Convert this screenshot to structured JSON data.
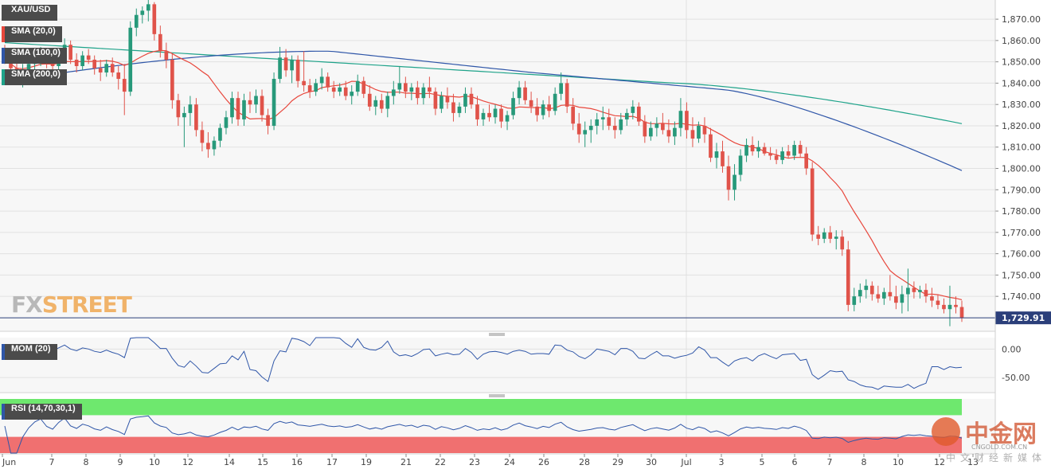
{
  "symbol": "XAU/USD",
  "indicators": [
    {
      "label": "SMA (20,0)",
      "color": "#e8473c"
    },
    {
      "label": "SMA (100,0)",
      "color": "#2f56a8"
    },
    {
      "label": "SMA (200,0)",
      "color": "#1fa38a"
    }
  ],
  "brand": {
    "prefix": "FX",
    "suffix": "STREET"
  },
  "watermark": {
    "name": "中金网",
    "domain": "CNGOLD.COM.CN",
    "subtitle": "中文财经新媒体"
  },
  "chart_data": {
    "type": "candlestick",
    "price_axis": {
      "range": [
        1724,
        1879
      ],
      "ticks": [
        "1,870.00",
        "1,860.00",
        "1,850.00",
        "1,840.00",
        "1,830.00",
        "1,820.00",
        "1,810.00",
        "1,800.00",
        "1,790.00",
        "1,780.00",
        "1,770.00",
        "1,760.00",
        "1,750.00",
        "1,740.00"
      ]
    },
    "last_price": "1,729.91",
    "x_ticks": [
      "Jun",
      "7",
      "8",
      "9",
      "10",
      "12",
      "14",
      "15",
      "16",
      "17",
      "19",
      "21",
      "22",
      "23",
      "24",
      "26",
      "28",
      "29",
      "30",
      "Jul",
      "3",
      "5",
      "6",
      "7",
      "8",
      "10",
      "12",
      "13"
    ],
    "candles": [
      [
        1853,
        1858,
        1849,
        1851
      ],
      [
        1851,
        1856,
        1845,
        1847
      ],
      [
        1847,
        1852,
        1840,
        1843
      ],
      [
        1843,
        1849,
        1838,
        1846
      ],
      [
        1846,
        1851,
        1842,
        1849
      ],
      [
        1849,
        1856,
        1845,
        1852
      ],
      [
        1852,
        1857,
        1848,
        1854
      ],
      [
        1854,
        1856,
        1847,
        1850
      ],
      [
        1850,
        1853,
        1844,
        1848
      ],
      [
        1848,
        1855,
        1846,
        1853
      ],
      [
        1853,
        1861,
        1851,
        1858
      ],
      [
        1858,
        1860,
        1849,
        1851
      ],
      [
        1851,
        1854,
        1845,
        1848
      ],
      [
        1848,
        1855,
        1846,
        1853
      ],
      [
        1853,
        1856,
        1849,
        1851
      ],
      [
        1851,
        1853,
        1844,
        1847
      ],
      [
        1847,
        1851,
        1841,
        1845
      ],
      [
        1845,
        1851,
        1843,
        1849
      ],
      [
        1849,
        1852,
        1843,
        1845
      ],
      [
        1845,
        1848,
        1837,
        1842
      ],
      [
        1842,
        1849,
        1825,
        1836
      ],
      [
        1836,
        1869,
        1834,
        1866
      ],
      [
        1866,
        1875,
        1862,
        1872
      ],
      [
        1872,
        1876,
        1868,
        1874
      ],
      [
        1874,
        1879,
        1869,
        1877
      ],
      [
        1877,
        1878,
        1860,
        1863
      ],
      [
        1863,
        1867,
        1852,
        1855
      ],
      [
        1855,
        1859,
        1847,
        1851
      ],
      [
        1851,
        1854,
        1828,
        1832
      ],
      [
        1832,
        1835,
        1820,
        1824
      ],
      [
        1824,
        1829,
        1810,
        1826
      ],
      [
        1826,
        1834,
        1820,
        1830
      ],
      [
        1830,
        1833,
        1815,
        1818
      ],
      [
        1818,
        1822,
        1808,
        1812
      ],
      [
        1812,
        1817,
        1805,
        1809
      ],
      [
        1809,
        1815,
        1806,
        1813
      ],
      [
        1813,
        1821,
        1810,
        1819
      ],
      [
        1819,
        1827,
        1816,
        1824
      ],
      [
        1824,
        1836,
        1821,
        1833
      ],
      [
        1833,
        1836,
        1820,
        1823
      ],
      [
        1823,
        1835,
        1820,
        1832
      ],
      [
        1832,
        1836,
        1826,
        1830
      ],
      [
        1830,
        1837,
        1826,
        1834
      ],
      [
        1834,
        1837,
        1822,
        1825
      ],
      [
        1825,
        1828,
        1816,
        1820
      ],
      [
        1820,
        1845,
        1818,
        1842
      ],
      [
        1842,
        1857,
        1840,
        1852
      ],
      [
        1852,
        1856,
        1843,
        1846
      ],
      [
        1846,
        1853,
        1840,
        1851
      ],
      [
        1851,
        1853,
        1838,
        1841
      ],
      [
        1841,
        1855,
        1836,
        1839
      ],
      [
        1839,
        1842,
        1833,
        1836
      ],
      [
        1836,
        1842,
        1834,
        1840
      ],
      [
        1840,
        1847,
        1837,
        1843
      ],
      [
        1843,
        1845,
        1836,
        1838
      ],
      [
        1838,
        1841,
        1833,
        1836
      ],
      [
        1836,
        1840,
        1834,
        1838
      ],
      [
        1838,
        1841,
        1832,
        1834
      ],
      [
        1834,
        1839,
        1830,
        1836
      ],
      [
        1836,
        1844,
        1834,
        1841
      ],
      [
        1841,
        1843,
        1833,
        1835
      ],
      [
        1835,
        1839,
        1827,
        1829
      ],
      [
        1829,
        1834,
        1825,
        1832
      ],
      [
        1832,
        1835,
        1826,
        1828
      ],
      [
        1828,
        1836,
        1824,
        1834
      ],
      [
        1834,
        1841,
        1830,
        1837
      ],
      [
        1837,
        1848,
        1835,
        1840
      ],
      [
        1840,
        1843,
        1833,
        1836
      ],
      [
        1836,
        1840,
        1832,
        1838
      ],
      [
        1838,
        1841,
        1830,
        1833
      ],
      [
        1833,
        1840,
        1830,
        1838
      ],
      [
        1838,
        1843,
        1833,
        1836
      ],
      [
        1836,
        1838,
        1825,
        1828
      ],
      [
        1828,
        1836,
        1826,
        1834
      ],
      [
        1834,
        1838,
        1828,
        1831
      ],
      [
        1831,
        1835,
        1822,
        1826
      ],
      [
        1826,
        1831,
        1824,
        1829
      ],
      [
        1829,
        1838,
        1826,
        1835
      ],
      [
        1835,
        1838,
        1828,
        1830
      ],
      [
        1830,
        1834,
        1820,
        1823
      ],
      [
        1823,
        1828,
        1820,
        1826
      ],
      [
        1826,
        1830,
        1822,
        1824
      ],
      [
        1824,
        1830,
        1821,
        1828
      ],
      [
        1828,
        1830,
        1819,
        1822
      ],
      [
        1822,
        1827,
        1818,
        1825
      ],
      [
        1825,
        1836,
        1823,
        1833
      ],
      [
        1833,
        1841,
        1830,
        1838
      ],
      [
        1838,
        1841,
        1830,
        1832
      ],
      [
        1832,
        1836,
        1826,
        1829
      ],
      [
        1829,
        1833,
        1822,
        1825
      ],
      [
        1825,
        1832,
        1823,
        1830
      ],
      [
        1830,
        1834,
        1824,
        1827
      ],
      [
        1827,
        1838,
        1825,
        1835
      ],
      [
        1835,
        1845,
        1832,
        1840
      ],
      [
        1840,
        1842,
        1826,
        1829
      ],
      [
        1829,
        1833,
        1818,
        1821
      ],
      [
        1821,
        1826,
        1812,
        1816
      ],
      [
        1816,
        1822,
        1810,
        1818
      ],
      [
        1818,
        1823,
        1812,
        1820
      ],
      [
        1820,
        1826,
        1816,
        1823
      ],
      [
        1823,
        1829,
        1818,
        1824
      ],
      [
        1824,
        1828,
        1818,
        1820
      ],
      [
        1820,
        1824,
        1814,
        1818
      ],
      [
        1818,
        1826,
        1816,
        1823
      ],
      [
        1823,
        1828,
        1820,
        1826
      ],
      [
        1826,
        1832,
        1823,
        1829
      ],
      [
        1829,
        1831,
        1820,
        1822
      ],
      [
        1822,
        1825,
        1812,
        1815
      ],
      [
        1815,
        1822,
        1813,
        1819
      ],
      [
        1819,
        1824,
        1815,
        1821
      ],
      [
        1821,
        1826,
        1816,
        1818
      ],
      [
        1818,
        1823,
        1812,
        1815
      ],
      [
        1815,
        1822,
        1811,
        1819
      ],
      [
        1819,
        1833,
        1815,
        1827
      ],
      [
        1827,
        1831,
        1814,
        1818
      ],
      [
        1818,
        1824,
        1810,
        1814
      ],
      [
        1814,
        1822,
        1812,
        1820
      ],
      [
        1820,
        1824,
        1812,
        1816
      ],
      [
        1816,
        1819,
        1803,
        1805
      ],
      [
        1805,
        1812,
        1800,
        1808
      ],
      [
        1808,
        1813,
        1798,
        1801
      ],
      [
        1801,
        1806,
        1785,
        1790
      ],
      [
        1790,
        1802,
        1785,
        1797
      ],
      [
        1797,
        1809,
        1794,
        1806
      ],
      [
        1806,
        1814,
        1803,
        1811
      ],
      [
        1811,
        1815,
        1806,
        1808
      ],
      [
        1808,
        1813,
        1805,
        1810
      ],
      [
        1810,
        1812,
        1806,
        1807
      ],
      [
        1807,
        1810,
        1804,
        1806
      ],
      [
        1806,
        1809,
        1802,
        1804
      ],
      [
        1804,
        1810,
        1802,
        1808
      ],
      [
        1808,
        1811,
        1805,
        1806
      ],
      [
        1806,
        1813,
        1804,
        1811
      ],
      [
        1811,
        1813,
        1805,
        1807
      ],
      [
        1807,
        1810,
        1797,
        1800
      ],
      [
        1800,
        1803,
        1766,
        1769
      ],
      [
        1769,
        1773,
        1764,
        1767
      ],
      [
        1767,
        1772,
        1765,
        1770
      ],
      [
        1770,
        1773,
        1765,
        1767
      ],
      [
        1767,
        1771,
        1762,
        1768
      ],
      [
        1768,
        1771,
        1759,
        1762
      ],
      [
        1762,
        1766,
        1733,
        1736
      ],
      [
        1736,
        1744,
        1733,
        1740
      ],
      [
        1740,
        1746,
        1737,
        1743
      ],
      [
        1743,
        1748,
        1739,
        1745
      ],
      [
        1745,
        1747,
        1738,
        1741
      ],
      [
        1741,
        1745,
        1737,
        1739
      ],
      [
        1739,
        1744,
        1736,
        1742
      ],
      [
        1742,
        1750,
        1738,
        1740
      ],
      [
        1740,
        1745,
        1734,
        1737
      ],
      [
        1737,
        1745,
        1732,
        1741
      ],
      [
        1741,
        1753,
        1733,
        1744
      ],
      [
        1744,
        1747,
        1739,
        1742
      ],
      [
        1742,
        1745,
        1739,
        1743
      ],
      [
        1743,
        1746,
        1737,
        1740
      ],
      [
        1740,
        1744,
        1735,
        1738
      ],
      [
        1738,
        1741,
        1734,
        1736
      ],
      [
        1736,
        1739,
        1732,
        1734
      ],
      [
        1734,
        1745,
        1726,
        1736
      ],
      [
        1736,
        1740,
        1732,
        1735
      ],
      [
        1735,
        1738,
        1728,
        1730
      ]
    ],
    "mom": {
      "range": [
        -75,
        20
      ],
      "ticks": [
        "0.00",
        "-50.00"
      ]
    },
    "rsi": {
      "overbought": 70,
      "oversold": 30,
      "range": [
        0,
        100
      ]
    }
  },
  "panes": [
    {
      "label": "MOM (20)",
      "color": "#2f56a8"
    },
    {
      "label": "RSI (14,70,30,1)",
      "color": "#2f56a8"
    }
  ]
}
